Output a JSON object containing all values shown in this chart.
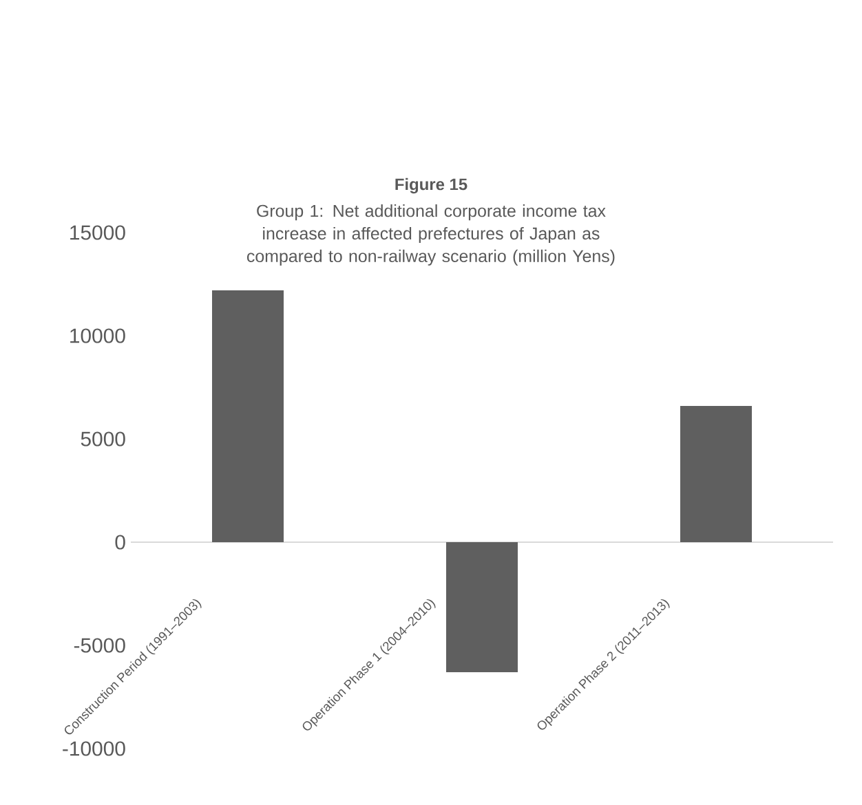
{
  "chart_data": {
    "type": "bar",
    "title": "Figure 15",
    "subtitle": "Group 1: Net additional corporate income tax increase in affected prefectures of Japan as compared to non-railway scenario (million Yens)",
    "categories": [
      "Construction Period (1991–2003)",
      "Operation Phase 1 (2004–2010)",
      "Operation Phase 2 (2011–2013)"
    ],
    "values": [
      12200,
      -6300,
      6600
    ],
    "color": "#5f5f5f",
    "ylim": [
      -10000,
      15000
    ],
    "yticks": [
      -10000,
      -5000,
      0,
      5000,
      10000,
      15000
    ]
  }
}
